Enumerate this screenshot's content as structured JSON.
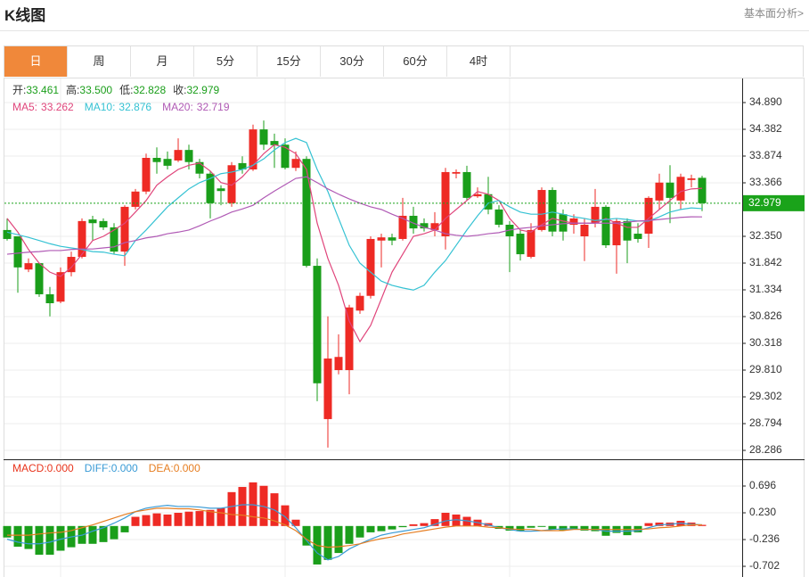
{
  "header": {
    "title": "K线图",
    "link": "基本面分析>"
  },
  "tabs": {
    "items": [
      "日",
      "周",
      "月",
      "5分",
      "15分",
      "30分",
      "60分",
      "4时"
    ],
    "active": 0
  },
  "chart_data": [
    {
      "type": "candlestick",
      "ylim": [
        28.117,
        35.347
      ],
      "yticks": [
        {
          "value": 34.89,
          "label": "34.890"
        },
        34.382,
        33.874,
        33.366,
        {
          "value": 32.35,
          "label": "32.350"
        },
        31.842,
        31.334,
        30.826,
        30.318,
        {
          "value": 29.81,
          "label": "29.810"
        },
        29.302,
        28.794,
        28.286
      ],
      "grid": true,
      "up_color": "#ee2a24",
      "down_color": "#1a9e1a",
      "ohlc_legend": [
        {
          "label": "开:",
          "value": 33.461
        },
        {
          "label": "高:",
          "value": 33.5,
          "value_label": "33.500"
        },
        {
          "label": "低:",
          "value": 32.828
        },
        {
          "label": "收:",
          "value": 32.979
        }
      ],
      "ohlc_value_color": "#1a9e1a",
      "last_price_color": "#1aa31a",
      "candles": [
        [
          32.47,
          32.69,
          32.27,
          32.3
        ],
        [
          32.35,
          32.35,
          31.28,
          31.76
        ],
        [
          31.72,
          31.93,
          31.67,
          31.84
        ],
        [
          31.84,
          31.84,
          31.2,
          31.25
        ],
        [
          31.25,
          31.39,
          30.83,
          31.08
        ],
        [
          31.11,
          31.76,
          31.08,
          31.67
        ],
        [
          31.67,
          32.06,
          31.59,
          31.96
        ],
        [
          31.96,
          32.69,
          31.93,
          32.64
        ],
        [
          32.67,
          32.74,
          32.27,
          32.6
        ],
        [
          32.64,
          32.69,
          32.47,
          32.52
        ],
        [
          32.52,
          32.6,
          32.01,
          32.06
        ],
        [
          32.06,
          32.94,
          31.79,
          32.91
        ],
        [
          32.91,
          33.25,
          32.86,
          33.2
        ],
        [
          33.2,
          33.92,
          33.15,
          33.84
        ],
        [
          33.84,
          34.04,
          33.54,
          33.76
        ],
        [
          33.82,
          33.96,
          33.62,
          33.69
        ],
        [
          33.79,
          34.21,
          33.76,
          33.99
        ],
        [
          33.99,
          34.09,
          33.62,
          33.76
        ],
        [
          33.76,
          33.82,
          33.45,
          33.54
        ],
        [
          33.54,
          33.59,
          32.69,
          32.98
        ],
        [
          33.26,
          33.32,
          32.94,
          33.21
        ],
        [
          32.98,
          33.76,
          32.91,
          33.7
        ],
        [
          33.74,
          33.87,
          33.54,
          33.62
        ],
        [
          33.62,
          34.47,
          33.59,
          34.38
        ],
        [
          34.38,
          34.55,
          33.99,
          34.09
        ],
        [
          34.16,
          34.3,
          33.65,
          34.08
        ],
        [
          34.09,
          34.21,
          33.62,
          33.65
        ],
        [
          33.65,
          33.96,
          33.59,
          33.82
        ],
        [
          33.82,
          33.87,
          31.76,
          31.79
        ],
        [
          31.79,
          31.93,
          29.22,
          29.56
        ],
        [
          28.88,
          30.83,
          28.34,
          30.03
        ],
        [
          29.81,
          30.49,
          29.73,
          30.06
        ],
        [
          29.81,
          31.05,
          29.35,
          31.0
        ],
        [
          30.94,
          31.28,
          30.88,
          31.22
        ],
        [
          31.22,
          32.35,
          31.17,
          32.3
        ],
        [
          32.27,
          32.4,
          31.76,
          32.33
        ],
        [
          32.33,
          32.4,
          32.18,
          32.27
        ],
        [
          32.3,
          33.08,
          32.27,
          32.74
        ],
        [
          32.74,
          32.91,
          32.4,
          32.5
        ],
        [
          32.6,
          32.69,
          32.44,
          32.5
        ],
        [
          32.47,
          32.81,
          32.35,
          32.6
        ],
        [
          32.35,
          33.65,
          32.1,
          33.57
        ],
        [
          33.54,
          33.62,
          33.45,
          33.57
        ],
        [
          33.57,
          33.69,
          33.03,
          33.08
        ],
        [
          33.11,
          33.28,
          33.08,
          33.15
        ],
        [
          33.15,
          33.48,
          32.77,
          32.86
        ],
        [
          32.86,
          32.94,
          32.52,
          32.57
        ],
        [
          32.57,
          32.64,
          31.67,
          32.35
        ],
        [
          32.4,
          32.47,
          31.89,
          32.01
        ],
        [
          31.96,
          32.6,
          31.93,
          32.47
        ],
        [
          32.47,
          33.28,
          32.44,
          33.23
        ],
        [
          33.23,
          33.28,
          32.35,
          32.44
        ],
        [
          32.77,
          32.86,
          32.27,
          32.44
        ],
        [
          32.57,
          32.77,
          32.4,
          32.69
        ],
        [
          32.35,
          32.69,
          31.88,
          32.57
        ],
        [
          32.6,
          33.25,
          32.52,
          32.91
        ],
        [
          32.91,
          32.94,
          32.13,
          32.18
        ],
        [
          32.18,
          32.69,
          31.64,
          32.64
        ],
        [
          32.64,
          32.69,
          31.84,
          32.27
        ],
        [
          32.4,
          32.6,
          32.23,
          32.3
        ],
        [
          32.4,
          33.11,
          32.13,
          33.08
        ],
        [
          33.03,
          33.54,
          32.86,
          33.37
        ],
        [
          33.37,
          33.7,
          32.6,
          33.08
        ],
        [
          33.03,
          33.54,
          32.86,
          33.48
        ],
        [
          33.42,
          33.52,
          33.28,
          33.45
        ],
        [
          33.461,
          33.5,
          32.828,
          32.979
        ]
      ],
      "series": [
        {
          "label": "MA5:",
          "color": "#e0457b",
          "values": [
            32.69,
            32.43,
            32.1,
            31.84,
            31.67,
            31.59,
            31.76,
            32.01,
            32.27,
            32.35,
            32.47,
            32.6,
            32.81,
            33.03,
            33.32,
            33.48,
            33.62,
            33.7,
            33.74,
            33.59,
            33.37,
            33.32,
            33.48,
            33.7,
            33.92,
            34.09,
            34.04,
            33.92,
            33.62,
            32.6,
            31.93,
            31.42,
            30.74,
            30.35,
            30.66,
            31.16,
            31.67,
            32.01,
            32.35,
            32.4,
            32.47,
            32.69,
            32.86,
            33.03,
            33.2,
            33.15,
            33.03,
            32.69,
            32.47,
            32.43,
            32.57,
            32.69,
            32.64,
            32.6,
            32.6,
            32.6,
            32.69,
            32.6,
            32.52,
            32.52,
            32.69,
            32.86,
            33.03,
            33.2,
            33.25,
            33.262
          ]
        },
        {
          "label": "MA10:",
          "color": "#35c2d3",
          "values": [
            32.43,
            32.38,
            32.33,
            32.27,
            32.21,
            32.16,
            32.13,
            32.1,
            32.06,
            32.05,
            32.01,
            31.98,
            32.27,
            32.47,
            32.69,
            32.91,
            33.08,
            33.25,
            33.37,
            33.45,
            33.54,
            33.57,
            33.62,
            33.7,
            33.82,
            33.99,
            34.13,
            34.21,
            34.13,
            33.62,
            33.2,
            32.69,
            32.18,
            31.84,
            31.67,
            31.5,
            31.42,
            31.37,
            31.33,
            31.42,
            31.67,
            31.89,
            32.18,
            32.47,
            32.74,
            32.98,
            33.03,
            32.91,
            32.81,
            32.77,
            32.77,
            32.81,
            32.77,
            32.72,
            32.69,
            32.65,
            32.67,
            32.69,
            32.67,
            32.64,
            32.64,
            32.72,
            32.81,
            32.86,
            32.89,
            32.876
          ]
        },
        {
          "label": "MA20:",
          "color": "#b05ab5",
          "values": [
            32.01,
            32.03,
            32.05,
            32.06,
            32.08,
            32.08,
            32.1,
            32.11,
            32.11,
            32.13,
            32.15,
            32.23,
            32.27,
            32.32,
            32.35,
            32.4,
            32.43,
            32.47,
            32.55,
            32.64,
            32.72,
            32.81,
            32.87,
            32.94,
            33.08,
            33.21,
            33.33,
            33.45,
            33.48,
            33.37,
            33.25,
            33.15,
            33.06,
            32.98,
            32.91,
            32.86,
            32.77,
            32.69,
            32.6,
            32.52,
            32.47,
            32.4,
            32.37,
            32.35,
            32.37,
            32.4,
            32.42,
            32.47,
            32.5,
            32.52,
            32.55,
            32.57,
            32.59,
            32.6,
            32.6,
            32.6,
            32.6,
            32.6,
            32.62,
            32.64,
            32.65,
            32.67,
            32.69,
            32.71,
            32.72,
            32.719
          ]
        }
      ]
    },
    {
      "type": "macd",
      "ylim": [
        -0.888,
        1.131
      ],
      "yticks": [
        0.696,
        {
          "value": 0.23,
          "label": "0.230"
        },
        -0.236,
        -0.702
      ],
      "grid": true,
      "up_color": "#ee2a24",
      "down_color": "#1a9e1a",
      "legend": [
        {
          "label": "MACD:",
          "value": 0,
          "value_label": "0.000",
          "color": "#e8341c"
        },
        {
          "label": "DIFF:",
          "value": 0,
          "value_label": "0.000",
          "color": "#3a9bd6"
        },
        {
          "label": "DEA:",
          "value": 0,
          "value_label": "0.000",
          "color": "#e67e22"
        }
      ],
      "bars": [
        -0.2,
        -0.36,
        -0.4,
        -0.5,
        -0.5,
        -0.43,
        -0.37,
        -0.31,
        -0.31,
        -0.28,
        -0.23,
        -0.11,
        0.16,
        0.19,
        0.22,
        0.2,
        0.23,
        0.25,
        0.26,
        0.28,
        0.31,
        0.59,
        0.68,
        0.76,
        0.7,
        0.57,
        0.36,
        0.11,
        -0.34,
        -0.67,
        -0.59,
        -0.47,
        -0.31,
        -0.2,
        -0.11,
        -0.09,
        -0.06,
        -0.02,
        0.03,
        0.05,
        0.12,
        0.23,
        0.2,
        0.16,
        0.11,
        0.05,
        -0.05,
        -0.08,
        -0.09,
        -0.03,
        -0.01,
        -0.06,
        -0.08,
        -0.06,
        -0.08,
        -0.09,
        -0.17,
        -0.12,
        -0.16,
        -0.11,
        0.05,
        0.06,
        0.06,
        0.09,
        0.06,
        0.02
      ],
      "series": [
        {
          "color": "#3a9bd6",
          "values": [
            -0.23,
            -0.28,
            -0.31,
            -0.31,
            -0.28,
            -0.23,
            -0.19,
            -0.16,
            -0.09,
            -0.03,
            0.05,
            0.14,
            0.25,
            0.31,
            0.34,
            0.36,
            0.34,
            0.34,
            0.33,
            0.31,
            0.31,
            0.34,
            0.37,
            0.37,
            0.34,
            0.28,
            0.16,
            -0.03,
            -0.25,
            -0.47,
            -0.59,
            -0.53,
            -0.4,
            -0.31,
            -0.23,
            -0.16,
            -0.12,
            -0.09,
            -0.06,
            -0.03,
            0.03,
            0.09,
            0.11,
            0.09,
            0.06,
            0.02,
            -0.03,
            -0.06,
            -0.09,
            -0.09,
            -0.08,
            -0.06,
            -0.05,
            -0.05,
            -0.06,
            -0.06,
            -0.09,
            -0.09,
            -0.09,
            -0.08,
            -0.03,
            0.02,
            0.03,
            0.05,
            0.03,
            0.02
          ]
        },
        {
          "color": "#e67e22",
          "values": [
            -0.16,
            -0.16,
            -0.16,
            -0.14,
            -0.12,
            -0.11,
            -0.08,
            -0.03,
            0.02,
            0.08,
            0.14,
            0.2,
            0.25,
            0.28,
            0.31,
            0.31,
            0.3,
            0.3,
            0.28,
            0.25,
            0.23,
            0.2,
            0.19,
            0.16,
            0.14,
            0.09,
            0.02,
            -0.08,
            -0.23,
            -0.34,
            -0.37,
            -0.36,
            -0.34,
            -0.31,
            -0.26,
            -0.22,
            -0.19,
            -0.14,
            -0.11,
            -0.08,
            -0.05,
            -0.02,
            0,
            0,
            0,
            -0.02,
            -0.03,
            -0.05,
            -0.06,
            -0.06,
            -0.08,
            -0.08,
            -0.08,
            -0.06,
            -0.06,
            -0.06,
            -0.06,
            -0.06,
            -0.06,
            -0.06,
            -0.05,
            -0.03,
            -0.02,
            0,
            0.02,
            0.02
          ]
        }
      ]
    }
  ]
}
